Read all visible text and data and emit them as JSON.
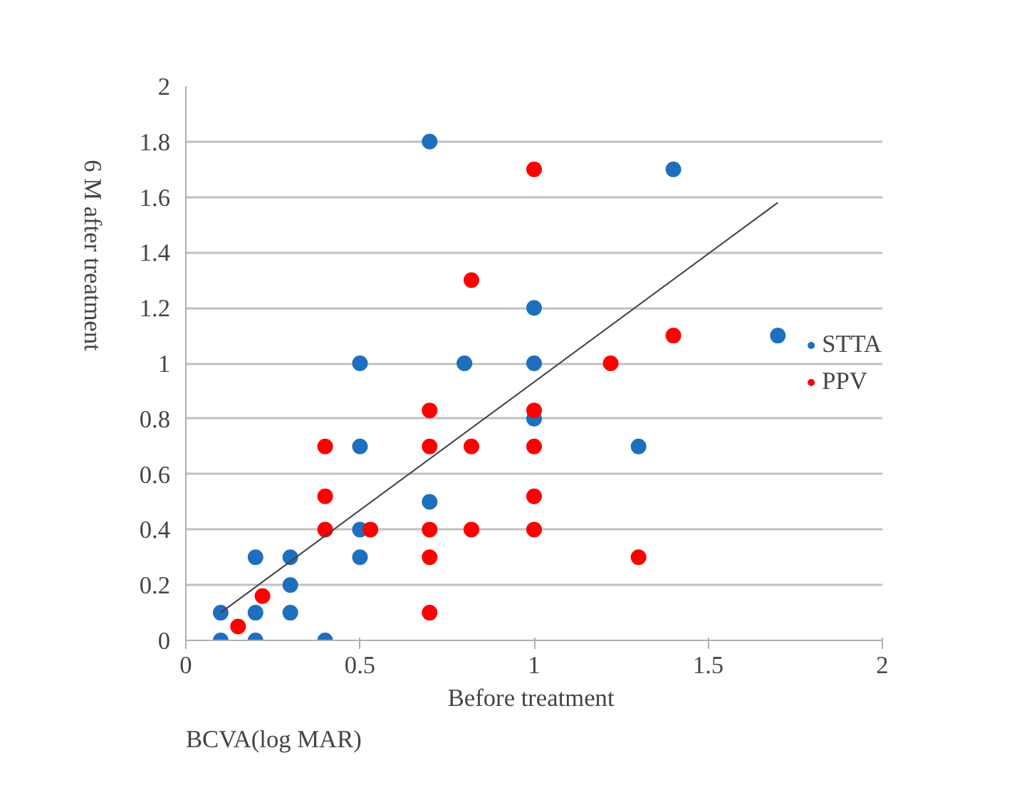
{
  "chart_data": {
    "type": "scatter",
    "xlabel": "Before  treatment",
    "ylabel": "6  M after  treatment",
    "annotations": [
      "BCVA(log MAR)"
    ],
    "xlim": [
      0,
      2
    ],
    "ylim": [
      0,
      2
    ],
    "xticks": [
      0,
      0.5,
      1,
      1.5,
      2
    ],
    "yticks": [
      0,
      0.2,
      0.4,
      0.6,
      0.8,
      1,
      1.2,
      1.4,
      1.6,
      1.8,
      2
    ],
    "grid": "y",
    "legend": "right",
    "marker": "circle",
    "series": [
      {
        "name": "STTA",
        "color": "#1f6fbf",
        "x": [
          0.1,
          0.1,
          0.2,
          0.2,
          0.2,
          0.3,
          0.3,
          0.3,
          0.4,
          0.5,
          0.5,
          0.5,
          0.5,
          0.7,
          0.7,
          0.8,
          1,
          1,
          1,
          1.3,
          1.4,
          1.7
        ],
        "values": [
          0.1,
          0,
          0,
          0.1,
          0.3,
          0.3,
          0.2,
          0.1,
          0,
          0.4,
          0.3,
          0.7,
          1.0,
          1.8,
          0.5,
          1.0,
          1.2,
          1.0,
          0.8,
          0.7,
          1.7,
          1.1
        ]
      },
      {
        "name": "PPV",
        "color": "#ff0000",
        "x": [
          0.15,
          0.22,
          0.4,
          0.4,
          0.4,
          0.53,
          0.7,
          0.7,
          0.7,
          0.7,
          0.7,
          0.82,
          0.82,
          0.82,
          1,
          1,
          1,
          1,
          1,
          1.22,
          1.3,
          1.4
        ],
        "values": [
          0.05,
          0.16,
          0.7,
          0.52,
          0.4,
          0.4,
          0.83,
          0.7,
          0.4,
          0.3,
          0.1,
          1.3,
          0.7,
          0.4,
          1.7,
          0.83,
          0.7,
          0.52,
          0.4,
          1.0,
          0.3,
          1.1
        ]
      },
      {
        "type": "line",
        "marker": "none",
        "color": "#404040",
        "x": [
          0.1,
          1.7
        ],
        "values": [
          0.1,
          1.58
        ]
      }
    ]
  }
}
